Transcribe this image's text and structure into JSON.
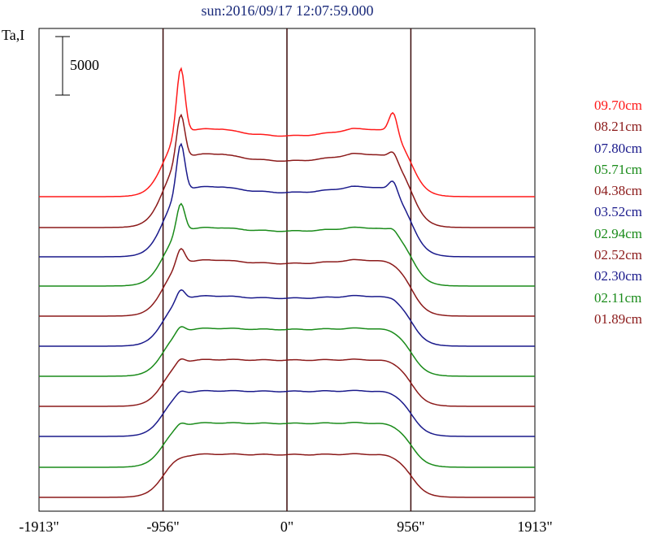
{
  "chart_data": {
    "type": "line",
    "title": "sun:2016/09/17 12:07:59.000",
    "ylabel": "Ta,I",
    "scale_bar_label": "5000",
    "scale_bar_value": 5000,
    "xlim": [
      -1913,
      1913
    ],
    "x_ticks": [
      -1913,
      -956,
      0,
      956,
      1913
    ],
    "x_tick_labels": [
      "-1913\"",
      "-956\"",
      "0\"",
      "956\"",
      "1913\""
    ],
    "vertical_lines": [
      -956,
      0,
      956
    ],
    "series": [
      {
        "name": "09.70cm",
        "color": "#ff1a1a",
        "baseline": 0,
        "limb_peak": 11500,
        "limb_peak_right": 7700,
        "plateau": 5800,
        "dip": 5200
      },
      {
        "name": "08.21cm",
        "color": "#8b1a1a",
        "baseline": 0,
        "limb_peak": 10200,
        "limb_peak_right": 7000,
        "plateau": 6300,
        "dip": 5700
      },
      {
        "name": "07.80cm",
        "color": "#1a1a8b",
        "baseline": 0,
        "limb_peak": 10200,
        "limb_peak_right": 7000,
        "plateau": 6000,
        "dip": 5500
      },
      {
        "name": "05.71cm",
        "color": "#1a8b1a",
        "baseline": 0,
        "limb_peak": 7500,
        "limb_peak_right": 5300,
        "plateau": 5000,
        "dip": 4700
      },
      {
        "name": "04.38cm",
        "color": "#8b1a1a",
        "baseline": 0,
        "limb_peak": 6200,
        "limb_peak_right": 4800,
        "plateau": 4800,
        "dip": 4500
      },
      {
        "name": "03.52cm",
        "color": "#1a1a8b",
        "baseline": 0,
        "limb_peak": 5200,
        "limb_peak_right": 4400,
        "plateau": 4300,
        "dip": 4100
      },
      {
        "name": "02.94cm",
        "color": "#1a8b1a",
        "baseline": 0,
        "limb_peak": 4600,
        "limb_peak_right": 4100,
        "plateau": 4100,
        "dip": 4000
      },
      {
        "name": "02.52cm",
        "color": "#8b1a1a",
        "baseline": 0,
        "limb_peak": 4400,
        "limb_peak_right": 4000,
        "plateau": 4000,
        "dip": 3950
      },
      {
        "name": "02.30cm",
        "color": "#1a1a8b",
        "baseline": 0,
        "limb_peak": 4200,
        "limb_peak_right": 3900,
        "plateau": 3900,
        "dip": 3850
      },
      {
        "name": "02.11cm",
        "color": "#1a8b1a",
        "baseline": 0,
        "limb_peak": 4100,
        "limb_peak_right": 3800,
        "plateau": 3800,
        "dip": 3750
      },
      {
        "name": "01.89cm",
        "color": "#8b1a1a",
        "baseline": 0,
        "limb_peak": 3700,
        "limb_peak_right": 3600,
        "plateau": 3700,
        "dip": 3650
      }
    ],
    "grid": false,
    "legend_position": "right"
  }
}
